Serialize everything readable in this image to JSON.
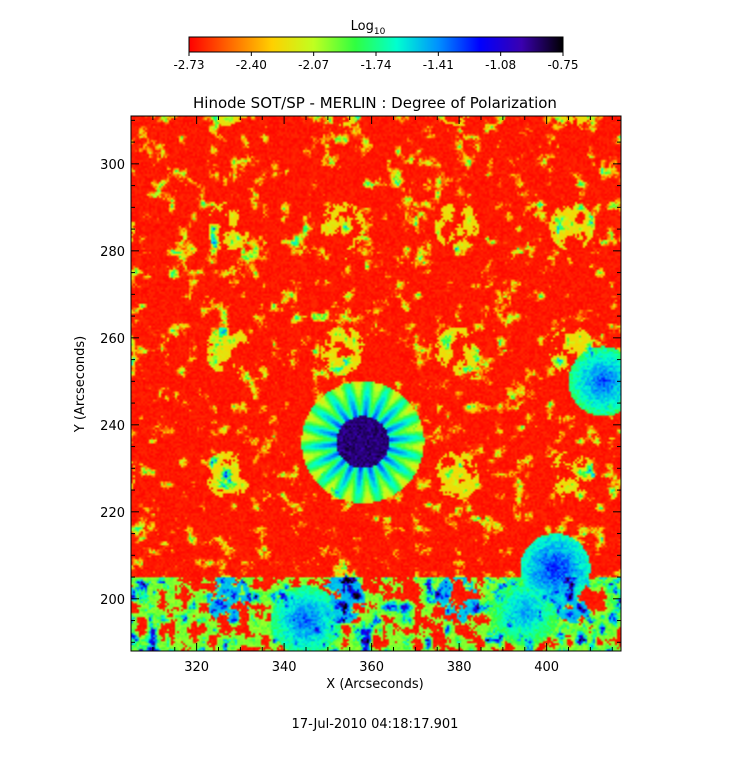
{
  "chart_data": {
    "type": "heatmap",
    "title": "Hinode SOT/SP - MERLIN : Degree of Polarization",
    "xlabel": "X (Arcseconds)",
    "ylabel": "Y (Arcseconds)",
    "xlim": [
      305,
      417
    ],
    "ylim": [
      188,
      311
    ],
    "x_ticks": [
      320,
      340,
      360,
      380,
      400
    ],
    "y_ticks": [
      200,
      220,
      240,
      260,
      280,
      300
    ],
    "colorbar": {
      "label": "Log",
      "label_subscript": "10",
      "range": [
        -2.73,
        -0.75
      ],
      "tick_labels": [
        "-2.73",
        "-2.40",
        "-2.07",
        "-1.74",
        "-1.41",
        "-1.08",
        "-0.75"
      ],
      "colormap": [
        "#ff0000",
        "#ff6a00",
        "#ffd000",
        "#c0ff20",
        "#30ff40",
        "#00ffd0",
        "#0090ff",
        "#0000ff",
        "#3a00b0",
        "#000000"
      ]
    },
    "features": [
      {
        "feature": "sunspot core",
        "x": 358,
        "y": 236,
        "radius_arcsec": 6,
        "value": -0.9
      },
      {
        "feature": "sunspot penumbra",
        "x": 358,
        "y": 236,
        "radius_arcsec": 11,
        "value": -1.5
      },
      {
        "feature": "network patch",
        "x": 402,
        "y": 207,
        "value": -1.2
      },
      {
        "feature": "network patch",
        "x": 413,
        "y": 250,
        "value": -1.3
      },
      {
        "feature": "plage field",
        "x": 345,
        "y": 195,
        "value": -1.3
      },
      {
        "feature": "plage field",
        "x": 395,
        "y": 197,
        "value": -1.4
      }
    ]
  },
  "footer": {
    "timestamp": "17-Jul-2010 04:18:17.901"
  }
}
